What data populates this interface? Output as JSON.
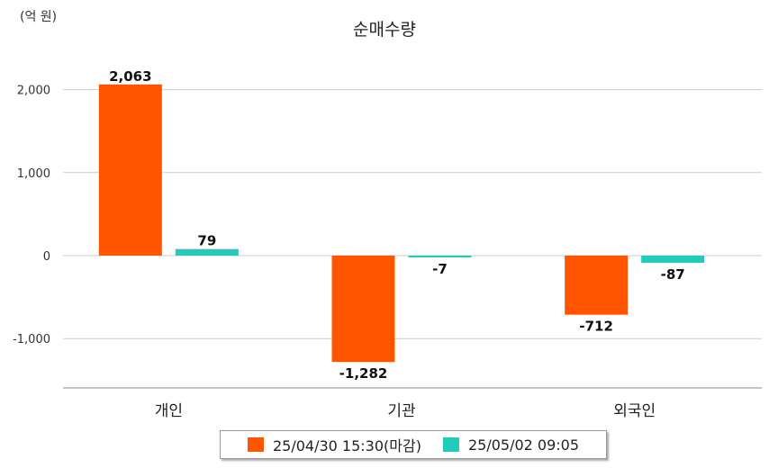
{
  "unit_label": "(억 원)",
  "chart_data": {
    "type": "bar",
    "title": "순매수량",
    "categories": [
      "개인",
      "기관",
      "외국인"
    ],
    "series": [
      {
        "name": "25/04/30 15:30(마감)",
        "values": [
          2063,
          -1282,
          -712
        ],
        "labels": [
          "2,063",
          "-1,282",
          "-712"
        ],
        "color": "#ff5500"
      },
      {
        "name": "25/05/02 09:05",
        "values": [
          79,
          -7,
          -87
        ],
        "labels": [
          "79",
          "-7",
          "-87"
        ],
        "color": "#22ccbb"
      }
    ],
    "yticks": [
      2000,
      1000,
      0,
      -1000
    ],
    "ytick_labels": [
      "2,000",
      "1,000",
      "0",
      "-1,000"
    ],
    "ylim": [
      -1600,
      2400
    ],
    "grid": true,
    "legend_position": "bottom"
  }
}
